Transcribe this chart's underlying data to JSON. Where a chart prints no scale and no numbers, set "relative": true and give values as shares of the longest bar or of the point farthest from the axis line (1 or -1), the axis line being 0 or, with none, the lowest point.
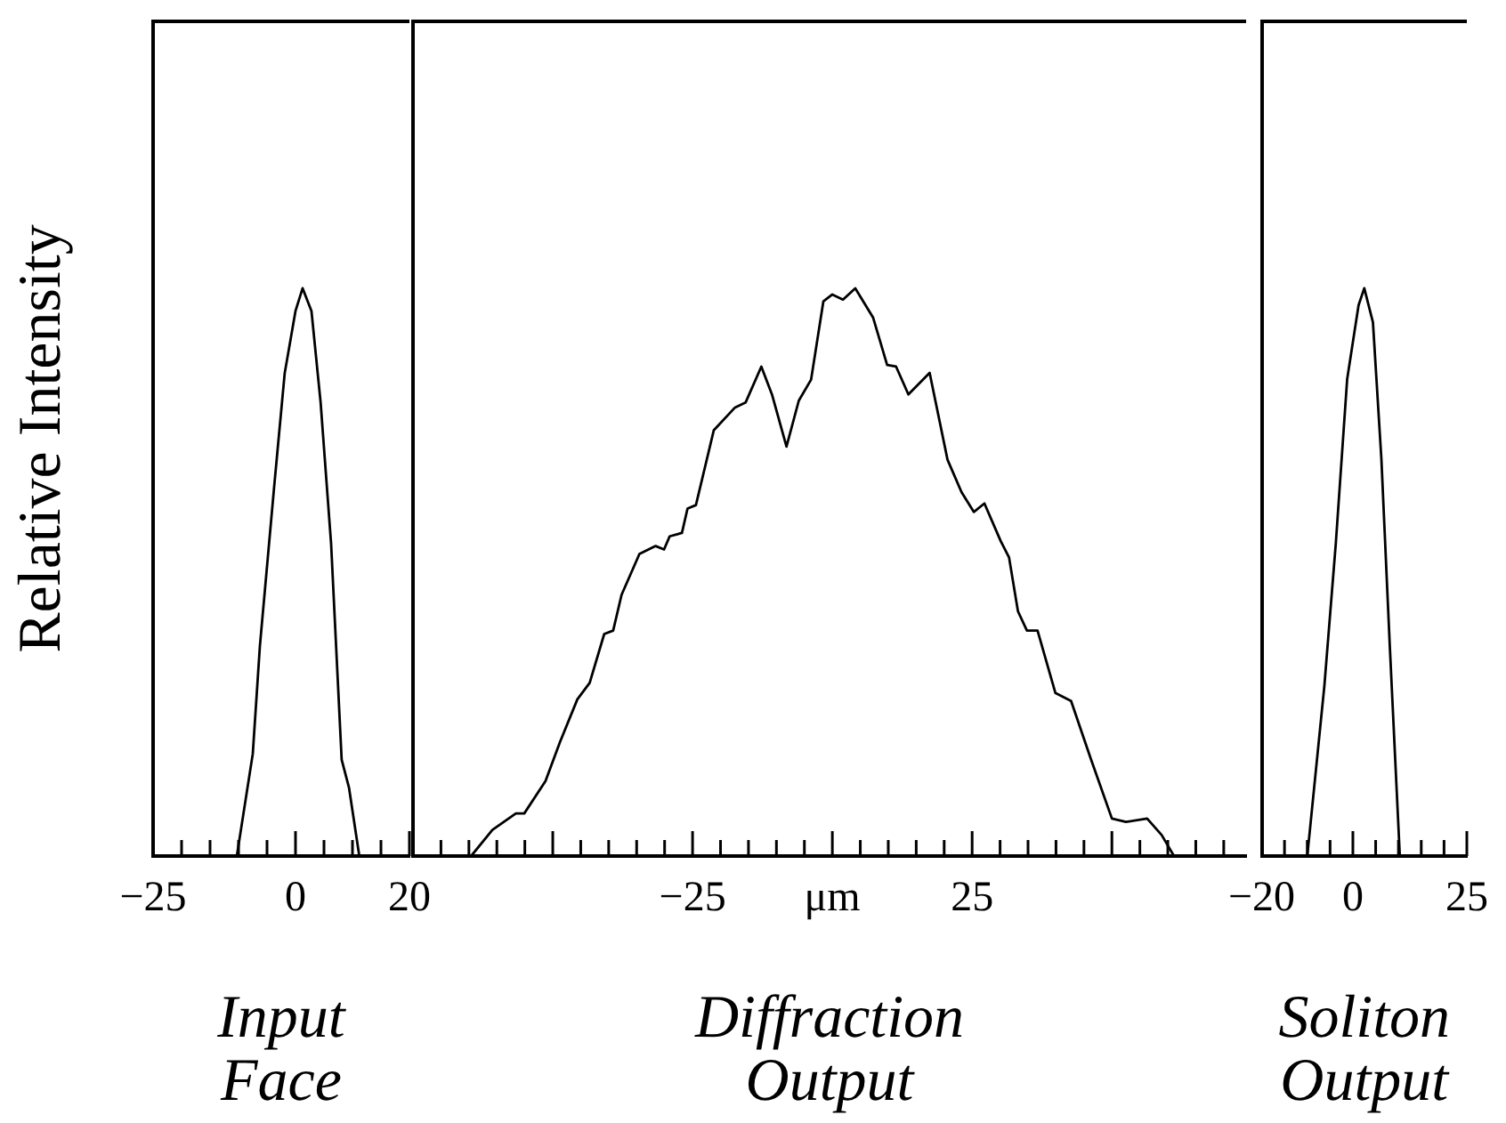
{
  "chart_data": [
    {
      "type": "line",
      "relative": true,
      "color": "#000000",
      "marker": "none",
      "tick_labels": "x",
      "ylabel": "Relative Intensity",
      "xlabel": "Input Face",
      "xlim": [
        -25,
        20
      ],
      "xticks": [
        {
          "value": -25,
          "label": "−25"
        },
        {
          "value": -20,
          "label": null
        },
        {
          "value": -15,
          "label": null
        },
        {
          "value": -10,
          "label": null
        },
        {
          "value": -5,
          "label": null
        },
        0,
        {
          "value": 5,
          "label": null
        },
        {
          "value": 10,
          "label": null
        },
        {
          "value": 15,
          "label": null
        },
        20
      ],
      "x": [
        -10.3,
        -7.5,
        -6.25,
        -3.75,
        -1.9,
        0,
        1.25,
        2.8,
        4.4,
        6.25,
        8.1,
        9.4,
        11.2
      ],
      "values": [
        0,
        0.18,
        0.37,
        0.65,
        0.85,
        0.96,
        1,
        0.96,
        0.8,
        0.55,
        0.17,
        0.12,
        0
      ]
    },
    {
      "type": "line",
      "relative": true,
      "color": "#000000",
      "marker": "none",
      "tick_labels": "x",
      "xlabel": "Diffraction Output",
      "xlim": [
        -75,
        74
      ],
      "xticks": [
        {
          "value": -70,
          "label": null
        },
        {
          "value": -65,
          "label": null
        },
        {
          "value": -60,
          "label": null
        },
        {
          "value": -55,
          "label": null
        },
        {
          "value": -50,
          "label": null
        },
        {
          "value": -45,
          "label": null
        },
        {
          "value": -40,
          "label": null
        },
        {
          "value": -35,
          "label": null
        },
        {
          "value": -30,
          "label": null
        },
        {
          "value": -25,
          "label": "−25"
        },
        {
          "value": -20,
          "label": null
        },
        {
          "value": -15,
          "label": null
        },
        {
          "value": -10,
          "label": null
        },
        {
          "value": -5,
          "label": null
        },
        {
          "value": 0,
          "label": "μm"
        },
        {
          "value": 5,
          "label": null
        },
        {
          "value": 10,
          "label": null
        },
        {
          "value": 15,
          "label": null
        },
        {
          "value": 20,
          "label": null
        },
        25,
        {
          "value": 30,
          "label": null
        },
        {
          "value": 35,
          "label": null
        },
        {
          "value": 40,
          "label": null
        },
        {
          "value": 45,
          "label": null
        },
        {
          "value": 50,
          "label": null
        },
        {
          "value": 55,
          "label": null
        },
        {
          "value": 60,
          "label": null
        },
        {
          "value": 65,
          "label": null
        },
        {
          "value": 70,
          "label": null
        }
      ],
      "x": [
        -64.6,
        -60.8,
        -56.6,
        -55.1,
        -51.3,
        -48.7,
        -45.6,
        -43.4,
        -40.8,
        -39.2,
        -37.7,
        -34.5,
        -31.6,
        -30.1,
        -29.1,
        -26.9,
        -25.9,
        -24.4,
        -21.2,
        -17.4,
        -15.5,
        -12.7,
        -10.8,
        -8.2,
        -6,
        -3.8,
        -1.6,
        0,
        1.9,
        4.1,
        7.3,
        9.8,
        11.4,
        13.6,
        17.4,
        20.6,
        23.1,
        25.3,
        27.2,
        30.1,
        31.6,
        33.2,
        34.8,
        36.7,
        39.9,
        42.7,
        46.2,
        50,
        52.5,
        56.3,
        58.9,
        61.1
      ],
      "values": [
        0,
        0.046,
        0.075,
        0.075,
        0.132,
        0.201,
        0.276,
        0.305,
        0.391,
        0.397,
        0.46,
        0.532,
        0.546,
        0.54,
        0.563,
        0.569,
        0.612,
        0.618,
        0.75,
        0.79,
        0.799,
        0.862,
        0.813,
        0.721,
        0.802,
        0.839,
        0.977,
        0.989,
        0.98,
        1,
        0.948,
        0.865,
        0.862,
        0.813,
        0.851,
        0.698,
        0.641,
        0.606,
        0.621,
        0.555,
        0.526,
        0.431,
        0.397,
        0.397,
        0.287,
        0.273,
        0.172,
        0.066,
        0.06,
        0.066,
        0.037,
        0
      ]
    },
    {
      "type": "line",
      "relative": true,
      "color": "#000000",
      "marker": "none",
      "tick_labels": "x",
      "xlabel": "Soliton Output",
      "xlim": [
        -20,
        25
      ],
      "xticks": [
        {
          "value": -20,
          "label": "−20"
        },
        {
          "value": -15,
          "label": null
        },
        {
          "value": -10,
          "label": null
        },
        {
          "value": -5,
          "label": null
        },
        0,
        {
          "value": 5,
          "label": null
        },
        {
          "value": 10,
          "label": null
        },
        {
          "value": 15,
          "label": null
        },
        {
          "value": 20,
          "label": null
        },
        25
      ],
      "x": [
        -10,
        -6.25,
        -3.75,
        -1.25,
        1.25,
        2.5,
        4.4,
        6.25,
        8.1,
        10.3
      ],
      "values": [
        0,
        0.3,
        0.55,
        0.84,
        0.97,
        1,
        0.94,
        0.7,
        0.37,
        0
      ]
    }
  ]
}
